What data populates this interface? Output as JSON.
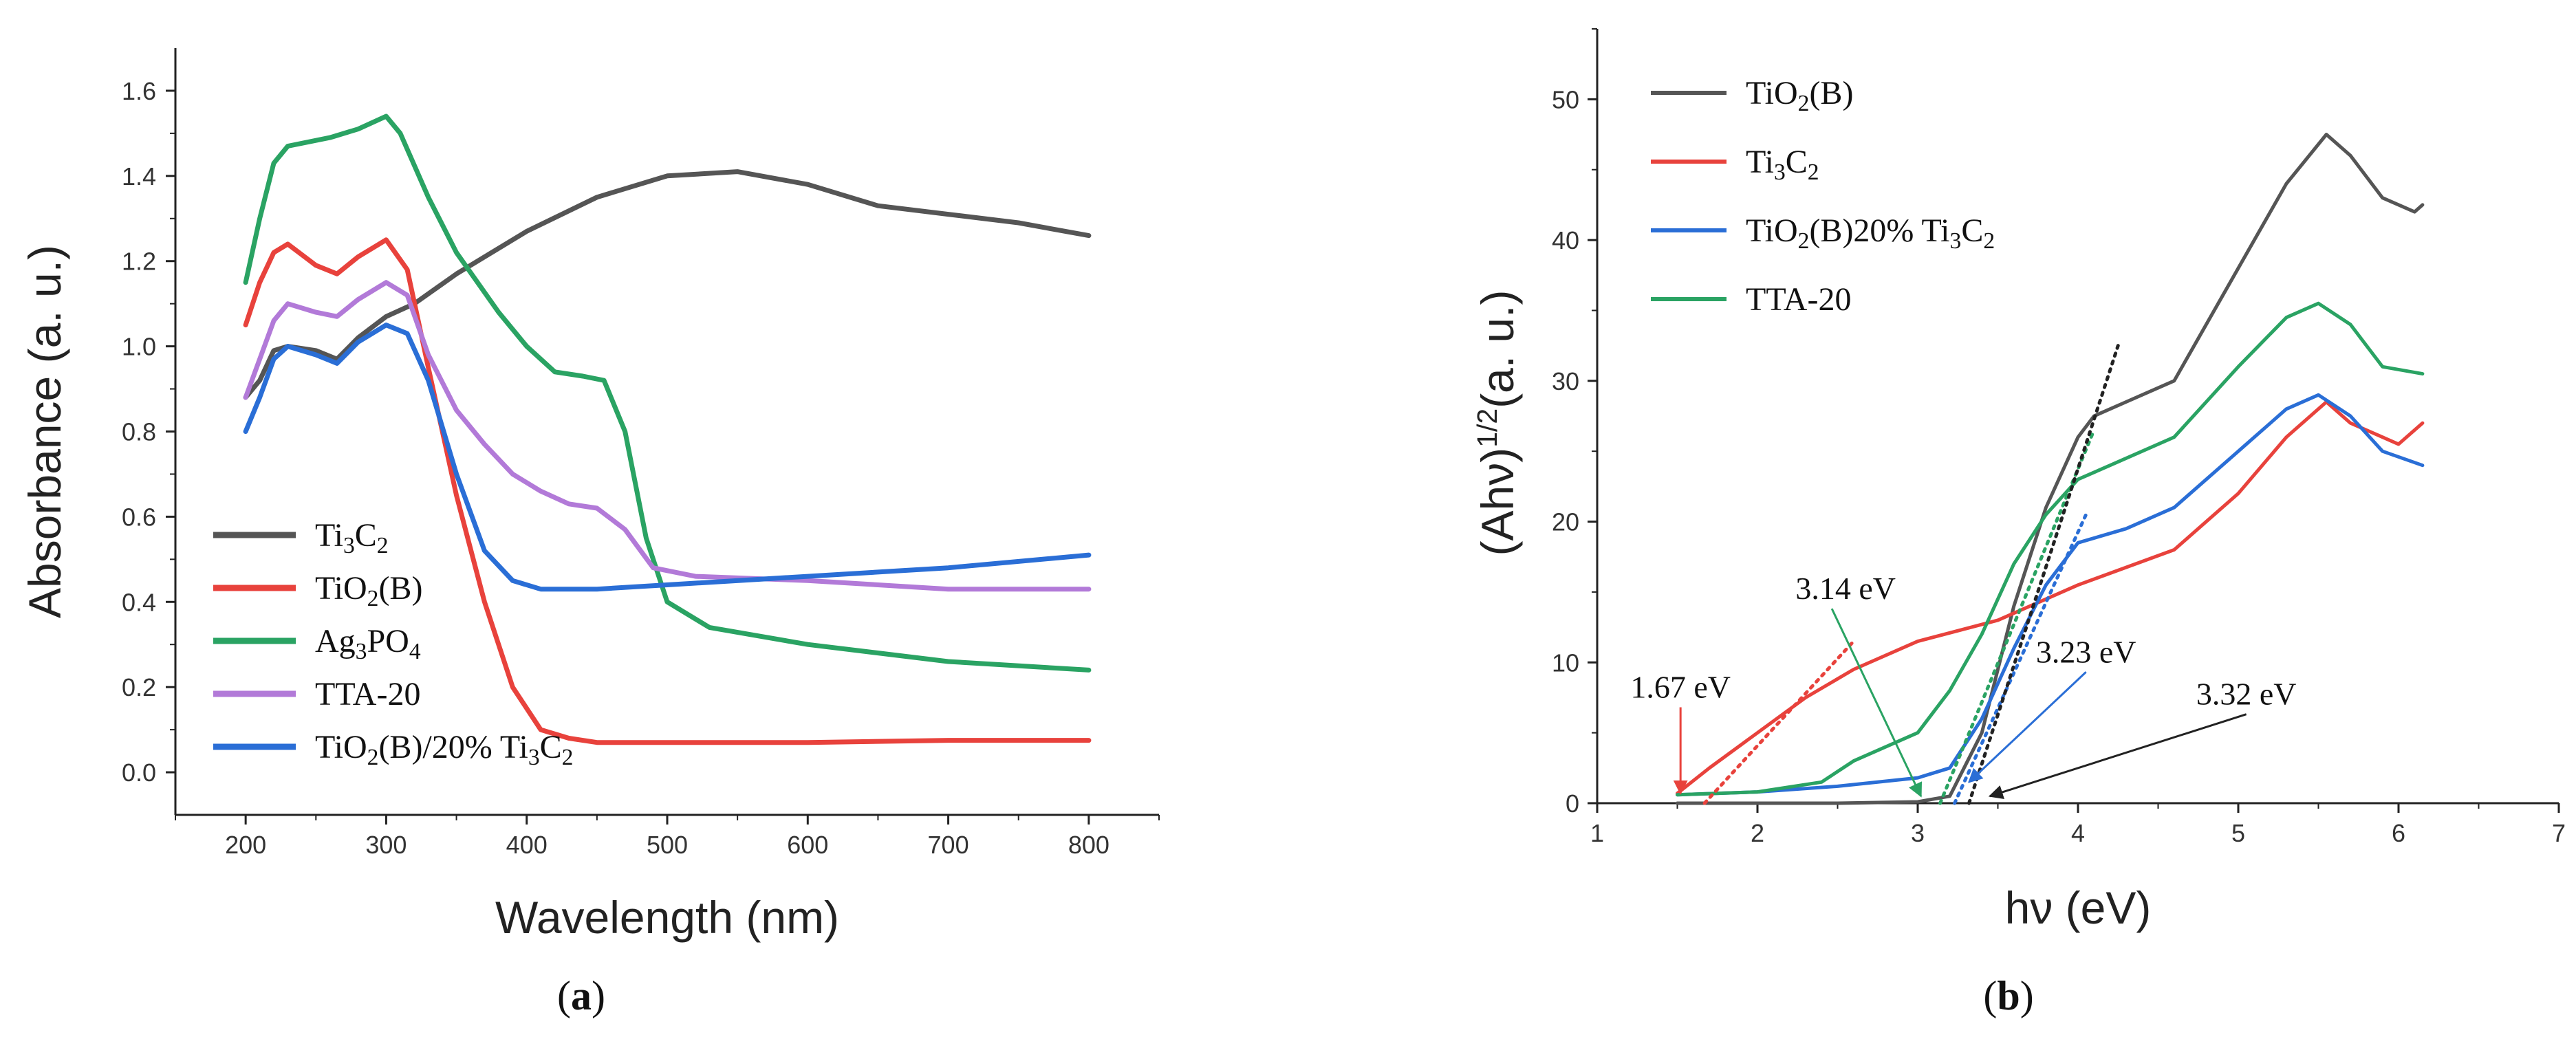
{
  "chart_data": [
    {
      "panel": "a",
      "type": "line",
      "caption": {
        "open": "(",
        "letter": "a",
        "close": ")"
      },
      "xlabel": "Wavelength (nm)",
      "ylabel": "Absorbance (a. u.)",
      "xlim": [
        150,
        850
      ],
      "ylim": [
        -0.1,
        1.7
      ],
      "xticks": [
        "200",
        "300",
        "400",
        "500",
        "600",
        "700",
        "800"
      ],
      "yticks": [
        "0.0",
        "0.2",
        "0.4",
        "0.6",
        "0.8",
        "1.0",
        "1.2",
        "1.4",
        "1.6"
      ],
      "legend_position": "bottom-left",
      "series": [
        {
          "name": "Ti3C2",
          "label": {
            "pre": "Ti",
            "sub1": "3",
            "mid": "C",
            "sub2": "2",
            "post": ""
          },
          "color": "#555555",
          "x": [
            200,
            210,
            220,
            230,
            250,
            265,
            280,
            300,
            320,
            350,
            380,
            400,
            450,
            500,
            550,
            600,
            650,
            700,
            750,
            800
          ],
          "y": [
            0.88,
            0.92,
            0.99,
            1.0,
            0.99,
            0.97,
            1.02,
            1.07,
            1.1,
            1.17,
            1.23,
            1.27,
            1.35,
            1.4,
            1.41,
            1.38,
            1.33,
            1.31,
            1.29,
            1.26
          ]
        },
        {
          "name": "TiO2(B)",
          "label": {
            "pre": "TiO",
            "sub1": "2",
            "mid": "(B)",
            "sub2": "",
            "post": ""
          },
          "color": "#e8423c",
          "x": [
            200,
            210,
            220,
            230,
            250,
            265,
            280,
            300,
            315,
            330,
            350,
            370,
            390,
            410,
            430,
            450,
            500,
            600,
            700,
            800
          ],
          "y": [
            1.05,
            1.15,
            1.22,
            1.24,
            1.19,
            1.17,
            1.21,
            1.25,
            1.18,
            0.95,
            0.65,
            0.4,
            0.2,
            0.1,
            0.08,
            0.07,
            0.07,
            0.07,
            0.075,
            0.075
          ],
          "marker_glitch": [
            655,
            0.07
          ]
        },
        {
          "name": "Ag3PO4",
          "label": {
            "pre": "Ag",
            "sub1": "3",
            "mid": "PO",
            "sub2": "4",
            "post": ""
          },
          "color": "#2aa363",
          "x": [
            200,
            210,
            220,
            230,
            260,
            280,
            300,
            310,
            330,
            350,
            380,
            400,
            420,
            440,
            455,
            470,
            485,
            500,
            530,
            600,
            700,
            800
          ],
          "y": [
            1.15,
            1.3,
            1.43,
            1.47,
            1.49,
            1.51,
            1.54,
            1.5,
            1.35,
            1.22,
            1.08,
            1.0,
            0.94,
            0.93,
            0.92,
            0.8,
            0.55,
            0.4,
            0.34,
            0.3,
            0.26,
            0.24
          ]
        },
        {
          "name": "TTA-20",
          "label": {
            "pre": "TTA-20",
            "sub1": "",
            "mid": "",
            "sub2": "",
            "post": ""
          },
          "color": "#b27ad8",
          "x": [
            200,
            210,
            220,
            230,
            250,
            265,
            280,
            300,
            315,
            330,
            350,
            370,
            390,
            410,
            430,
            450,
            470,
            490,
            520,
            600,
            700,
            800
          ],
          "y": [
            0.88,
            0.97,
            1.06,
            1.1,
            1.08,
            1.07,
            1.11,
            1.15,
            1.12,
            0.98,
            0.85,
            0.77,
            0.7,
            0.66,
            0.63,
            0.62,
            0.57,
            0.48,
            0.46,
            0.45,
            0.43,
            0.43
          ]
        },
        {
          "name": "TiO2(B)/20% Ti3C2",
          "label": {
            "pre": "TiO",
            "sub1": "2",
            "mid": "(B)/20% Ti",
            "sub2": "3",
            "post": "C",
            "sub3": "2"
          },
          "color": "#2a6ed6",
          "x": [
            200,
            210,
            220,
            230,
            250,
            265,
            280,
            300,
            315,
            330,
            350,
            370,
            390,
            410,
            450,
            500,
            600,
            700,
            800
          ],
          "y": [
            0.8,
            0.88,
            0.97,
            1.0,
            0.98,
            0.96,
            1.01,
            1.05,
            1.03,
            0.92,
            0.7,
            0.52,
            0.45,
            0.43,
            0.43,
            0.44,
            0.46,
            0.48,
            0.51
          ]
        }
      ]
    },
    {
      "panel": "b",
      "type": "line",
      "caption": {
        "open": "(",
        "letter": "b",
        "close": ")"
      },
      "xlabel": "hν (eV)",
      "ylabel": {
        "pre": "(Ahν)",
        "sup": "1/2",
        "post": "(a. u.)"
      },
      "xlim": [
        1,
        7
      ],
      "ylim": [
        0,
        55
      ],
      "xticks": [
        "1",
        "2",
        "3",
        "4",
        "5",
        "6",
        "7"
      ],
      "yticks": [
        "0",
        "10",
        "20",
        "30",
        "40",
        "50"
      ],
      "legend_position": "top-left",
      "series": [
        {
          "name": "TiO2(B)",
          "label": {
            "pre": "TiO",
            "sub1": "2",
            "mid": "(B)",
            "sub2": "",
            "post": ""
          },
          "color": "#555555",
          "x": [
            1.5,
            2.5,
            3.0,
            3.2,
            3.4,
            3.6,
            3.8,
            4.0,
            4.1,
            4.3,
            4.6,
            5.0,
            5.3,
            5.55,
            5.7,
            5.9,
            6.1,
            6.15
          ],
          "y": [
            0.0,
            0.0,
            0.1,
            0.5,
            5,
            14,
            21,
            26,
            27.5,
            28.5,
            30,
            38,
            44,
            47.5,
            46,
            43,
            42,
            42.5
          ]
        },
        {
          "name": "Ti3C2",
          "label": {
            "pre": "Ti",
            "sub1": "3",
            "mid": "C",
            "sub2": "2",
            "post": ""
          },
          "color": "#e8423c",
          "x": [
            1.5,
            1.7,
            2.0,
            2.3,
            2.6,
            3.0,
            3.5,
            4.0,
            4.6,
            5.0,
            5.3,
            5.55,
            5.7,
            5.9,
            6.0,
            6.15
          ],
          "y": [
            0.7,
            2.5,
            5,
            7.5,
            9.5,
            11.5,
            13,
            15.5,
            18,
            22,
            26,
            28.5,
            27,
            26,
            25.5,
            27
          ]
        },
        {
          "name": "TiO2(B)20% Ti3C2",
          "label": {
            "pre": "TiO",
            "sub1": "2",
            "mid": "(B)20% Ti",
            "sub2": "3",
            "post": "C",
            "sub3": "2"
          },
          "color": "#2a6ed6",
          "x": [
            1.5,
            2.0,
            2.5,
            3.0,
            3.2,
            3.4,
            3.6,
            3.8,
            4.0,
            4.3,
            4.6,
            5.0,
            5.3,
            5.5,
            5.7,
            5.9,
            6.15
          ],
          "y": [
            0.6,
            0.8,
            1.2,
            1.8,
            2.5,
            6,
            11,
            15.5,
            18.5,
            19.5,
            21,
            25,
            28,
            29,
            27.5,
            25,
            24
          ]
        },
        {
          "name": "TTA-20",
          "label": {
            "pre": "TTA-20",
            "sub1": "",
            "mid": "",
            "sub2": "",
            "post": ""
          },
          "color": "#2aa363",
          "x": [
            1.5,
            2.0,
            2.4,
            2.6,
            2.8,
            3.0,
            3.2,
            3.4,
            3.6,
            3.8,
            4.0,
            4.2,
            4.6,
            5.0,
            5.3,
            5.5,
            5.7,
            5.9,
            6.15
          ],
          "y": [
            0.6,
            0.8,
            1.5,
            3,
            4,
            5,
            8,
            12,
            17,
            20.5,
            23,
            24,
            26,
            31,
            34.5,
            35.5,
            34,
            31,
            30.5
          ]
        }
      ],
      "tangents": [
        {
          "color": "#e8423c",
          "from": [
            1.67,
            0
          ],
          "to": [
            2.6,
            11.5
          ]
        },
        {
          "color": "#2aa363",
          "from": [
            3.14,
            0
          ],
          "to": [
            4.1,
            26.5
          ]
        },
        {
          "color": "#2a6ed6",
          "from": [
            3.23,
            0
          ],
          "to": [
            4.05,
            20.5
          ]
        },
        {
          "color": "#222222",
          "from": [
            3.32,
            0
          ],
          "to": [
            4.25,
            32.5
          ]
        }
      ],
      "annotations": [
        {
          "text": "1.67 eV",
          "color": "#e8423c",
          "text_at": [
            1.52,
            7.5
          ],
          "arrow_to": [
            1.52,
            0.7
          ]
        },
        {
          "text": "3.14 eV",
          "color": "#2aa363",
          "text_at": [
            2.55,
            14.5
          ],
          "arrow_to": [
            3.02,
            0.5
          ]
        },
        {
          "text": "3.23 eV",
          "color": "#2a6ed6",
          "text_at": [
            4.05,
            10.0
          ],
          "arrow_to": [
            3.32,
            1.5
          ]
        },
        {
          "text": "3.32 eV",
          "color": "#222222",
          "text_at": [
            5.05,
            7.0
          ],
          "arrow_to": [
            3.45,
            0.5
          ]
        }
      ]
    }
  ]
}
